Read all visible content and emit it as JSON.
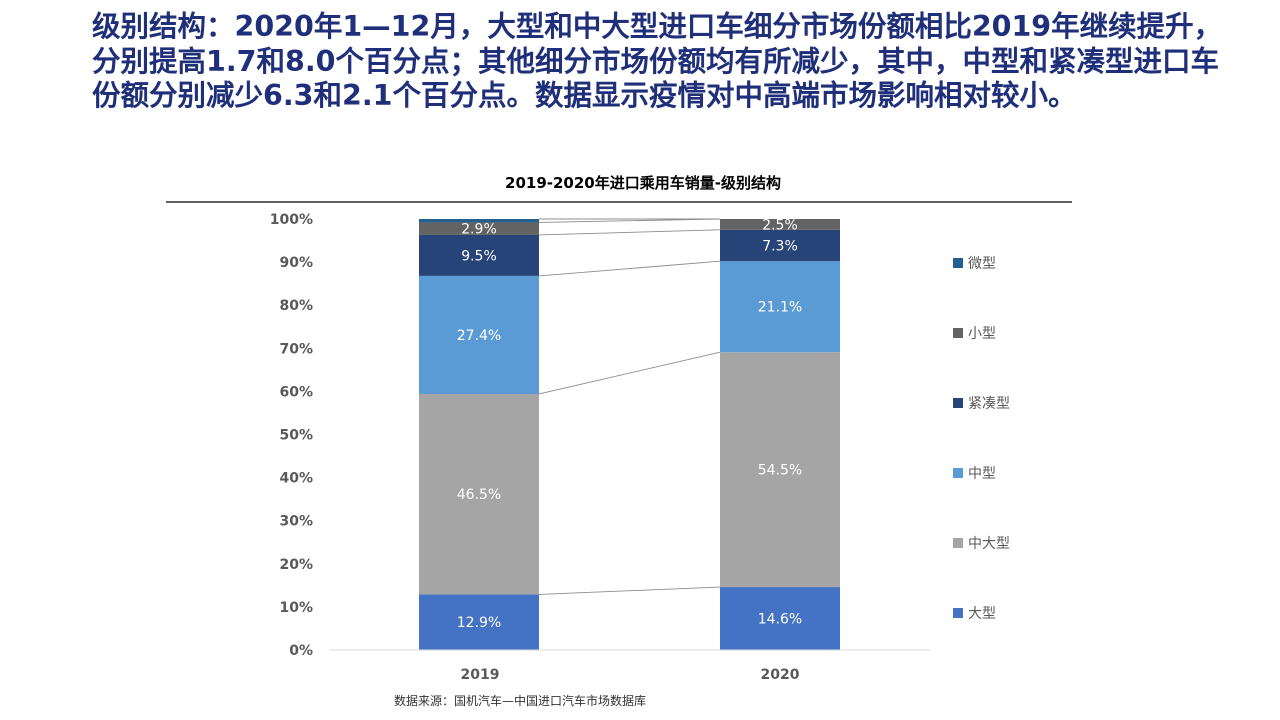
{
  "headline": "级别结构：2020年1—12月，大型和中大型进口车细分市场份额相比2019年继续提升，分别提高1.7和8.0个百分点；其他细分市场份额均有所减少，其中，中型和紧凑型进口车份额分别减少6.3和2.1个百分点。数据显示疫情对中高端市场影响相对较小。",
  "source": "数据来源：国机汽车—中国进口汽车市场数据库",
  "chart_data": {
    "type": "bar",
    "stacked": true,
    "title": "2019-2020年进口乘用车销量-级别结构",
    "categories": [
      "2019",
      "2020"
    ],
    "ylim": [
      0,
      100
    ],
    "yticks": [
      "0%",
      "10%",
      "20%",
      "30%",
      "40%",
      "50%",
      "60%",
      "70%",
      "80%",
      "90%",
      "100%"
    ],
    "legend_position": "right",
    "series": [
      {
        "name": "大型",
        "values": [
          12.9,
          14.6
        ],
        "labels": [
          "12.9%",
          "14.6%"
        ],
        "color": "#4472c4"
      },
      {
        "name": "中大型",
        "values": [
          46.5,
          54.5
        ],
        "labels": [
          "46.5%",
          "54.5%"
        ],
        "color": "#a5a5a5"
      },
      {
        "name": "中型",
        "values": [
          27.4,
          21.1
        ],
        "labels": [
          "27.4%",
          "21.1%"
        ],
        "color": "#5b9bd5"
      },
      {
        "name": "紧凑型",
        "values": [
          9.5,
          7.3
        ],
        "labels": [
          "9.5%",
          "7.3%"
        ],
        "color": "#264478"
      },
      {
        "name": "小型",
        "values": [
          2.9,
          2.5
        ],
        "labels": [
          "2.9%",
          "2.5%"
        ],
        "color": "#636363"
      },
      {
        "name": "微型",
        "values": [
          0.8,
          0.0
        ],
        "labels": [
          "",
          ""
        ],
        "color": "#255e91"
      }
    ]
  }
}
